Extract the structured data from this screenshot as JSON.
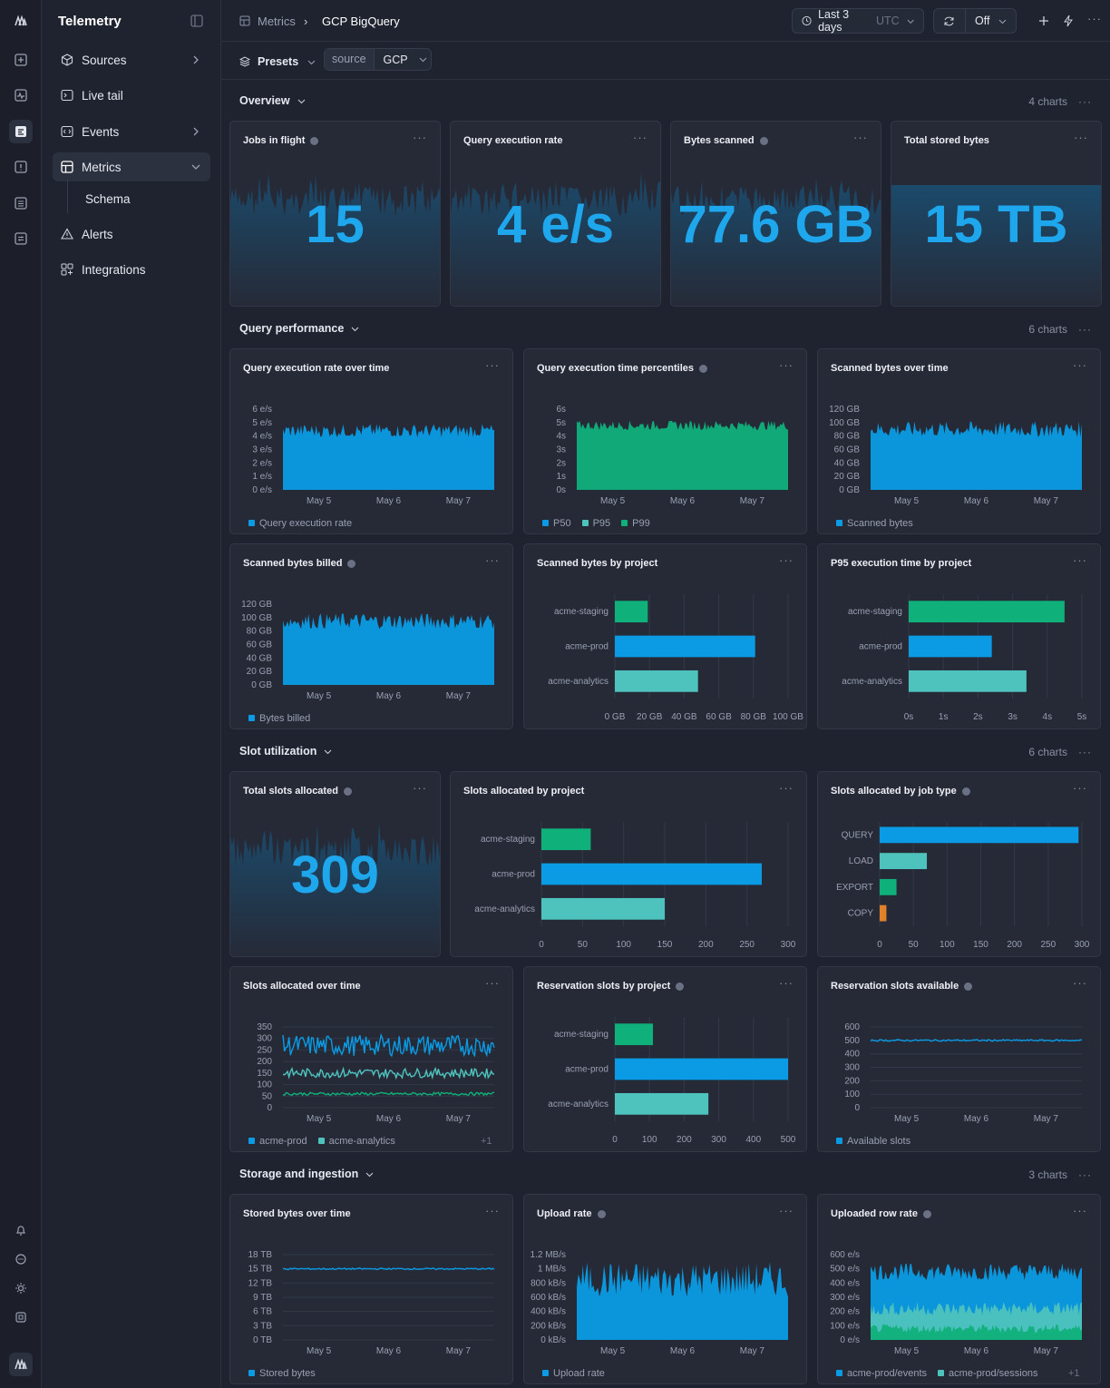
{
  "app": {
    "title": "Telemetry"
  },
  "nav": [
    {
      "label": "Sources",
      "chevron": true
    },
    {
      "label": "Live tail",
      "chevron": false
    },
    {
      "label": "Events",
      "chevron": true
    },
    {
      "label": "Metrics",
      "chevron": true,
      "active": true
    },
    {
      "label": "Schema",
      "sub": true
    },
    {
      "label": "Alerts",
      "chevron": false
    },
    {
      "label": "Integrations",
      "chevron": false
    }
  ],
  "breadcrumb": {
    "parent": "Metrics",
    "current": "GCP BigQuery"
  },
  "toolbar": {
    "time_range": "Last 3 days",
    "tz": "UTC",
    "refresh": "Off"
  },
  "filters": {
    "presets": "Presets",
    "key": "source",
    "value": "GCP"
  },
  "sections": [
    {
      "title": "Overview",
      "count": "4 charts"
    },
    {
      "title": "Query performance",
      "count": "6 charts"
    },
    {
      "title": "Slot utilization",
      "count": "6 charts"
    },
    {
      "title": "Storage and ingestion",
      "count": "3 charts"
    }
  ],
  "stats": [
    {
      "title": "Jobs in flight",
      "value": "15",
      "info": true
    },
    {
      "title": "Query execution rate",
      "value": "4 e/s",
      "info": false
    },
    {
      "title": "Bytes scanned",
      "value": "77.6 GB",
      "info": true
    },
    {
      "title": "Total stored bytes",
      "value": "15 TB",
      "info": false
    },
    {
      "title": "Total slots allocated",
      "value": "309",
      "info": true
    }
  ],
  "colors": {
    "blue": "#0a9be4",
    "green": "#10b07a",
    "teal": "#4ec3bd",
    "orange": "#e0812a",
    "grid": "#33384a",
    "axis": "#9aa0b2"
  },
  "chart_data": [
    {
      "id": "qer",
      "type": "area",
      "title": "Query execution rate over time",
      "yticks": [
        "6 e/s",
        "5 e/s",
        "4 e/s",
        "3 e/s",
        "2 e/s",
        "1 e/s",
        "0 e/s"
      ],
      "ylim": [
        0,
        6
      ],
      "xticks": [
        "May 5",
        "May 6",
        "May 7"
      ],
      "series": [
        {
          "name": "Query execution rate",
          "color": "blue",
          "level": 4.4,
          "noise": 0.5
        }
      ]
    },
    {
      "id": "qetp",
      "type": "area",
      "title": "Query execution time percentiles",
      "info": true,
      "yticks": [
        "6s",
        "5s",
        "4s",
        "3s",
        "2s",
        "1s",
        "0s"
      ],
      "ylim": [
        0,
        6
      ],
      "xticks": [
        "May 5",
        "May 6",
        "May 7"
      ],
      "series": [
        {
          "name": "P50",
          "color": "blue"
        },
        {
          "name": "P95",
          "color": "teal"
        },
        {
          "name": "P99",
          "color": "green",
          "level": 4.8,
          "noise": 0.35
        }
      ]
    },
    {
      "id": "sbot",
      "type": "area",
      "title": "Scanned bytes over time",
      "yticks": [
        "120 GB",
        "100 GB",
        "80 GB",
        "60 GB",
        "40 GB",
        "20 GB",
        "0 GB"
      ],
      "ylim": [
        0,
        120
      ],
      "xticks": [
        "May 5",
        "May 6",
        "May 7"
      ],
      "series": [
        {
          "name": "Scanned bytes",
          "color": "blue",
          "level": 90,
          "noise": 12
        }
      ]
    },
    {
      "id": "sbb",
      "type": "area",
      "title": "Scanned bytes billed",
      "info": true,
      "yticks": [
        "120 GB",
        "100 GB",
        "80 GB",
        "60 GB",
        "40 GB",
        "20 GB",
        "0 GB"
      ],
      "ylim": [
        0,
        120
      ],
      "xticks": [
        "May 5",
        "May 6",
        "May 7"
      ],
      "series": [
        {
          "name": "Bytes billed",
          "color": "blue",
          "level": 95,
          "noise": 12
        }
      ]
    },
    {
      "id": "sbp",
      "type": "bar",
      "title": "Scanned bytes by project",
      "categories": [
        "acme-staging",
        "acme-prod",
        "acme-analytics"
      ],
      "values": [
        19,
        81,
        48
      ],
      "colors": [
        "green",
        "blue",
        "teal"
      ],
      "xticks": [
        "0 GB",
        "20 GB",
        "40 GB",
        "60 GB",
        "80 GB",
        "100 GB"
      ],
      "xlim": [
        0,
        100
      ]
    },
    {
      "id": "p95",
      "type": "bar",
      "title": "P95 execution time by project",
      "categories": [
        "acme-staging",
        "acme-prod",
        "acme-analytics"
      ],
      "values": [
        4.5,
        2.4,
        3.4
      ],
      "colors": [
        "green",
        "blue",
        "teal"
      ],
      "xticks": [
        "0s",
        "1s",
        "2s",
        "3s",
        "4s",
        "5s"
      ],
      "xlim": [
        0,
        5
      ]
    },
    {
      "id": "sap",
      "type": "bar",
      "title": "Slots allocated by project",
      "categories": [
        "acme-staging",
        "acme-prod",
        "acme-analytics"
      ],
      "values": [
        60,
        268,
        150
      ],
      "colors": [
        "green",
        "blue",
        "teal"
      ],
      "xticks": [
        "0",
        "50",
        "100",
        "150",
        "200",
        "250",
        "300"
      ],
      "xlim": [
        0,
        300
      ]
    },
    {
      "id": "sajt",
      "type": "bar",
      "title": "Slots allocated by job type",
      "info": true,
      "categories": [
        "QUERY",
        "LOAD",
        "EXPORT",
        "COPY"
      ],
      "values": [
        295,
        70,
        25,
        10
      ],
      "colors": [
        "blue",
        "teal",
        "green",
        "orange"
      ],
      "xticks": [
        "0",
        "50",
        "100",
        "150",
        "200",
        "250",
        "300"
      ],
      "xlim": [
        0,
        300
      ]
    },
    {
      "id": "saot",
      "type": "line",
      "title": "Slots allocated over time",
      "yticks": [
        "350",
        "300",
        "250",
        "200",
        "150",
        "100",
        "50",
        "0"
      ],
      "ylim": [
        0,
        350
      ],
      "xticks": [
        "May 5",
        "May 6",
        "May 7"
      ],
      "series": [
        {
          "name": "acme-prod",
          "color": "blue",
          "level": 270,
          "noise": 45
        },
        {
          "name": "acme-analytics",
          "color": "teal",
          "level": 150,
          "noise": 20
        },
        {
          "name": "",
          "color": "green",
          "level": 60,
          "noise": 6
        }
      ],
      "legend_more": "+1"
    },
    {
      "id": "rsp",
      "type": "bar",
      "title": "Reservation slots by project",
      "info": true,
      "categories": [
        "acme-staging",
        "acme-prod",
        "acme-analytics"
      ],
      "values": [
        110,
        500,
        270
      ],
      "colors": [
        "green",
        "blue",
        "teal"
      ],
      "xticks": [
        "0",
        "100",
        "200",
        "300",
        "400",
        "500"
      ],
      "xlim": [
        0,
        500
      ]
    },
    {
      "id": "rsa",
      "type": "line",
      "title": "Reservation slots available",
      "info": true,
      "yticks": [
        "600",
        "500",
        "400",
        "300",
        "200",
        "100",
        "0"
      ],
      "ylim": [
        0,
        600
      ],
      "xticks": [
        "May 5",
        "May 6",
        "May 7"
      ],
      "series": [
        {
          "name": "Available slots",
          "color": "blue",
          "level": 500,
          "noise": 6
        }
      ]
    },
    {
      "id": "sbt",
      "type": "line",
      "title": "Stored bytes over time",
      "yticks": [
        "18 TB",
        "15 TB",
        "12 TB",
        "9 TB",
        "6 TB",
        "3 TB",
        "0 TB"
      ],
      "ylim": [
        0,
        18
      ],
      "xticks": [
        "May 5",
        "May 6",
        "May 7"
      ],
      "series": [
        {
          "name": "Stored bytes",
          "color": "blue",
          "level": 15,
          "noise": 0.15
        }
      ]
    },
    {
      "id": "ur",
      "type": "area",
      "title": "Upload rate",
      "info": true,
      "yticks": [
        "1.2 MB/s",
        "1 MB/s",
        "800 kB/s",
        "600 kB/s",
        "400 kB/s",
        "200 kB/s",
        "0 kB/s"
      ],
      "ylim": [
        0,
        1.2
      ],
      "xticks": [
        "May 5",
        "May 6",
        "May 7"
      ],
      "series": [
        {
          "name": "Upload rate",
          "color": "blue",
          "level": 0.85,
          "noise": 0.25
        }
      ]
    },
    {
      "id": "urr",
      "type": "area",
      "title": "Uploaded row rate",
      "info": true,
      "yticks": [
        "600 e/s",
        "500 e/s",
        "400 e/s",
        "300 e/s",
        "200 e/s",
        "100 e/s",
        "0 e/s"
      ],
      "ylim": [
        0,
        600
      ],
      "xticks": [
        "May 5",
        "May 6",
        "May 7"
      ],
      "series": [
        {
          "name": "acme-prod/events",
          "color": "blue",
          "level": 480,
          "noise": 60
        },
        {
          "name": "acme-prod/sessions",
          "color": "teal",
          "level": 220,
          "noise": 50
        },
        {
          "name": "",
          "color": "green",
          "level": 80,
          "noise": 30
        }
      ],
      "legend_more": "+1"
    }
  ]
}
